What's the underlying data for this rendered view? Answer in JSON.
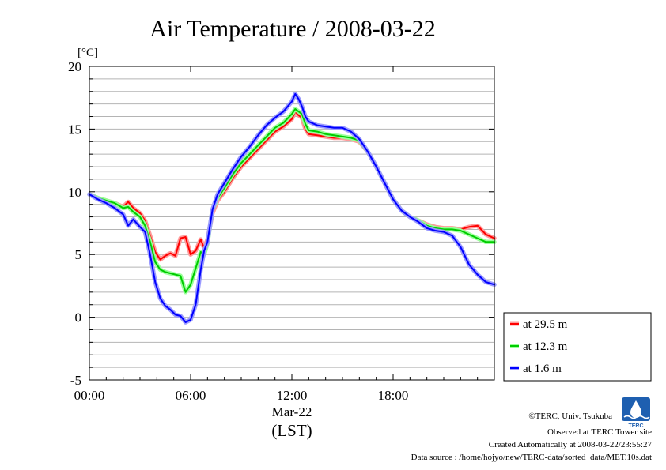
{
  "chart_data": {
    "type": "line",
    "title": "Air Temperature / 2008-03-22",
    "y_unit_label": "[°C]",
    "ylim": [
      -5,
      20
    ],
    "y_ticks": [
      "20",
      "15",
      "10",
      "5",
      "0",
      "-5"
    ],
    "x_ticks": [
      "00:00",
      "06:00",
      "12:00",
      "18:00"
    ],
    "x_date_label": "Mar-22",
    "xlabel": "(LST)",
    "xlim_hours": [
      0,
      24
    ],
    "grid": true,
    "legend_position": "right",
    "series": [
      {
        "name": "at 29.5 m",
        "color": "#ff0000",
        "halo": "#ff9a9a",
        "x_hours": [
          0,
          0.5,
          1,
          1.5,
          2,
          2.3,
          2.6,
          3,
          3.3,
          3.6,
          3.9,
          4.2,
          4.5,
          4.8,
          5.1,
          5.4,
          5.7,
          6,
          6.3,
          6.6,
          6.8,
          7,
          7.3,
          7.6,
          8,
          8.5,
          9,
          9.5,
          10,
          10.5,
          11,
          11.5,
          12,
          12.2,
          12.4,
          12.6,
          12.8,
          13,
          13.5,
          14,
          14.5,
          15,
          15.5,
          16,
          16.5,
          17,
          17.5,
          18,
          18.5,
          19,
          19.5,
          20,
          20.5,
          21,
          21.5,
          22,
          22.5,
          23,
          23.5,
          24
        ],
        "y": [
          9.8,
          9.5,
          9.3,
          9.1,
          8.8,
          9.2,
          8.7,
          8.3,
          7.7,
          6.5,
          5.2,
          4.6,
          4.9,
          5.1,
          4.9,
          6.3,
          6.4,
          5.0,
          5.3,
          6.2,
          5.5,
          6.2,
          8.3,
          9.3,
          10.0,
          11.1,
          12.0,
          12.7,
          13.4,
          14.1,
          14.8,
          15.2,
          15.8,
          16.4,
          16.1,
          15.9,
          15.0,
          14.6,
          14.5,
          14.4,
          14.3,
          14.3,
          14.2,
          14.0,
          13.2,
          12.0,
          10.7,
          9.4,
          8.5,
          8.0,
          7.7,
          7.4,
          7.2,
          7.1,
          7.1,
          7.0,
          7.2,
          7.3,
          6.6,
          6.3
        ]
      },
      {
        "name": "at 12.3 m",
        "color": "#00cc00",
        "halo": "#99ff99",
        "x_hours": [
          0,
          0.5,
          1,
          1.5,
          2,
          2.3,
          2.6,
          3,
          3.3,
          3.6,
          3.9,
          4.2,
          4.5,
          4.8,
          5.1,
          5.4,
          5.7,
          6,
          6.3,
          6.6,
          6.8,
          7,
          7.3,
          7.6,
          8,
          8.5,
          9,
          9.5,
          10,
          10.5,
          11,
          11.5,
          12,
          12.2,
          12.4,
          12.6,
          12.8,
          13,
          13.5,
          14,
          14.5,
          15,
          15.5,
          16,
          16.5,
          17,
          17.5,
          18,
          18.5,
          19,
          19.5,
          20,
          20.5,
          21,
          21.5,
          22,
          22.5,
          23,
          23.5,
          24
        ],
        "y": [
          9.8,
          9.5,
          9.3,
          9.1,
          8.7,
          8.8,
          8.4,
          8.0,
          7.3,
          6.0,
          4.4,
          3.8,
          3.6,
          3.5,
          3.4,
          3.3,
          2.0,
          2.6,
          3.9,
          5.2,
          5.0,
          5.9,
          8.6,
          9.5,
          10.3,
          11.4,
          12.3,
          13.0,
          13.7,
          14.4,
          15.1,
          15.5,
          16.2,
          16.6,
          16.4,
          16.2,
          15.4,
          14.9,
          14.8,
          14.6,
          14.5,
          14.4,
          14.3,
          14.1,
          13.2,
          12.0,
          10.7,
          9.4,
          8.5,
          8.0,
          7.7,
          7.3,
          7.1,
          7.0,
          7.0,
          6.9,
          6.6,
          6.3,
          6.0,
          6.0
        ]
      },
      {
        "name": "at 1.6 m",
        "color": "#0000ff",
        "halo": "#9a9aff",
        "x_hours": [
          0,
          0.5,
          1,
          1.5,
          2,
          2.3,
          2.6,
          3,
          3.3,
          3.6,
          3.9,
          4.2,
          4.5,
          4.8,
          5.1,
          5.4,
          5.7,
          6,
          6.3,
          6.6,
          6.8,
          7,
          7.3,
          7.6,
          8,
          8.5,
          9,
          9.5,
          10,
          10.5,
          11,
          11.5,
          12,
          12.2,
          12.4,
          12.6,
          12.8,
          13,
          13.5,
          14,
          14.5,
          15,
          15.5,
          16,
          16.5,
          17,
          17.5,
          18,
          18.5,
          19,
          19.5,
          20,
          20.5,
          21,
          21.5,
          22,
          22.5,
          23,
          23.5,
          24
        ],
        "y": [
          9.8,
          9.4,
          9.1,
          8.7,
          8.2,
          7.3,
          7.8,
          7.2,
          6.8,
          5.0,
          2.8,
          1.5,
          0.9,
          0.6,
          0.2,
          0.1,
          -0.4,
          -0.2,
          1.0,
          3.8,
          5.3,
          6.0,
          8.6,
          9.8,
          10.7,
          11.8,
          12.8,
          13.6,
          14.5,
          15.3,
          15.9,
          16.4,
          17.2,
          17.8,
          17.4,
          16.8,
          16.0,
          15.6,
          15.3,
          15.2,
          15.1,
          15.1,
          14.8,
          14.2,
          13.2,
          12.0,
          10.7,
          9.4,
          8.5,
          8.0,
          7.6,
          7.1,
          6.9,
          6.8,
          6.5,
          5.6,
          4.2,
          3.4,
          2.8,
          2.6
        ]
      }
    ]
  },
  "footer": {
    "copyright": "©TERC, Univ. Tsukuba",
    "site": "Observed at TERC Tower site",
    "created": "Created Automatically at 2008-03-22/23:55:27",
    "source": "Data source : /home/hojyo/new/TERC-data/sorted_data/MET.10s.dat",
    "logo_text": "TERC"
  }
}
